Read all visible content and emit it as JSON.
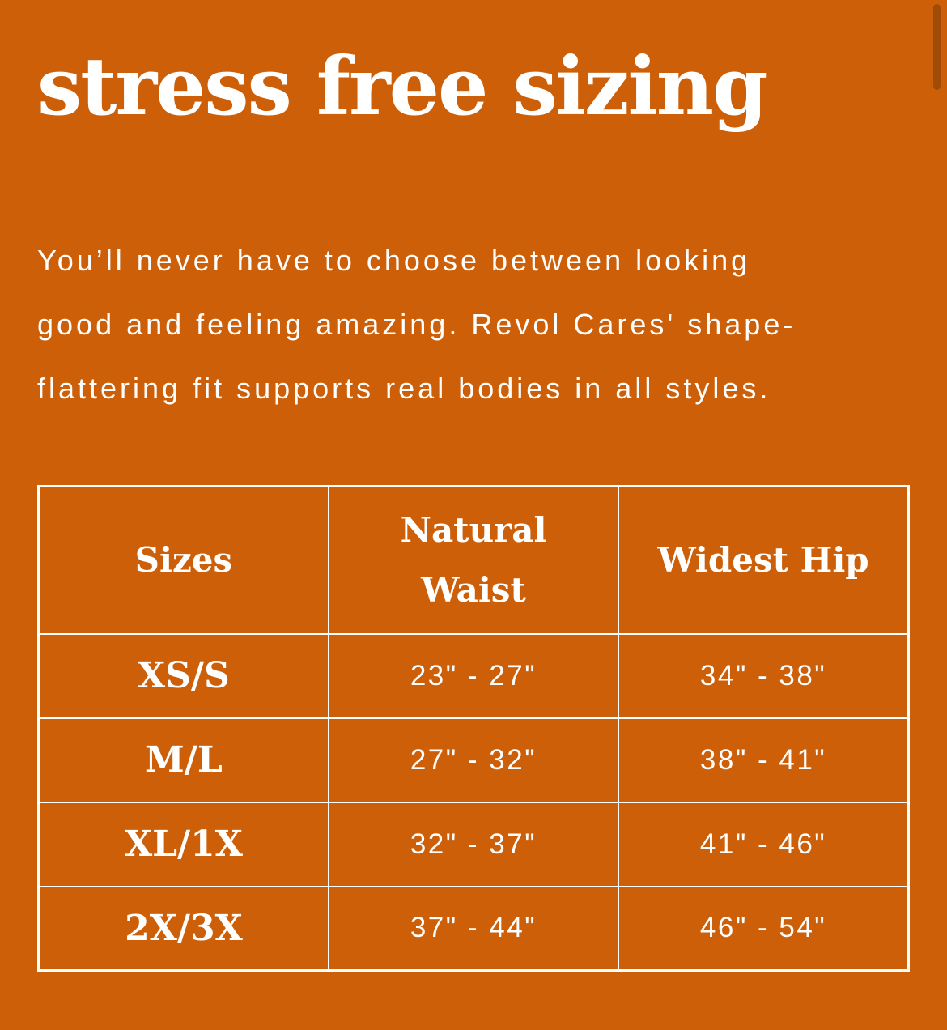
{
  "theme": {
    "background_color": "#CC5F08",
    "text_color": "#FFFFFF",
    "table_border_color": "#FFFFFF",
    "scrollbar_thumb_color": "#A04C06"
  },
  "heading": {
    "title": "stress free sizing"
  },
  "intro": {
    "lines": [
      "You’ll never have to choose between looking",
      "good and feeling amazing. Revol Cares' shape-",
      "flattering fit supports real bodies in all styles."
    ]
  },
  "size_table": {
    "columns": [
      "Sizes",
      "Natural Waist",
      "Widest Hip"
    ],
    "rows": [
      {
        "size": "XS/S",
        "natural_waist": "23\" - 27\"",
        "widest_hip": "34\" - 38\""
      },
      {
        "size": "M/L",
        "natural_waist": "27\" - 32\"",
        "widest_hip": "38\" - 41\""
      },
      {
        "size": "XL/1X",
        "natural_waist": "32\" - 37\"",
        "widest_hip": "41\" - 46\""
      },
      {
        "size": "2X/3X",
        "natural_waist": "37\" - 44\"",
        "widest_hip": "46\" - 54\""
      }
    ]
  }
}
